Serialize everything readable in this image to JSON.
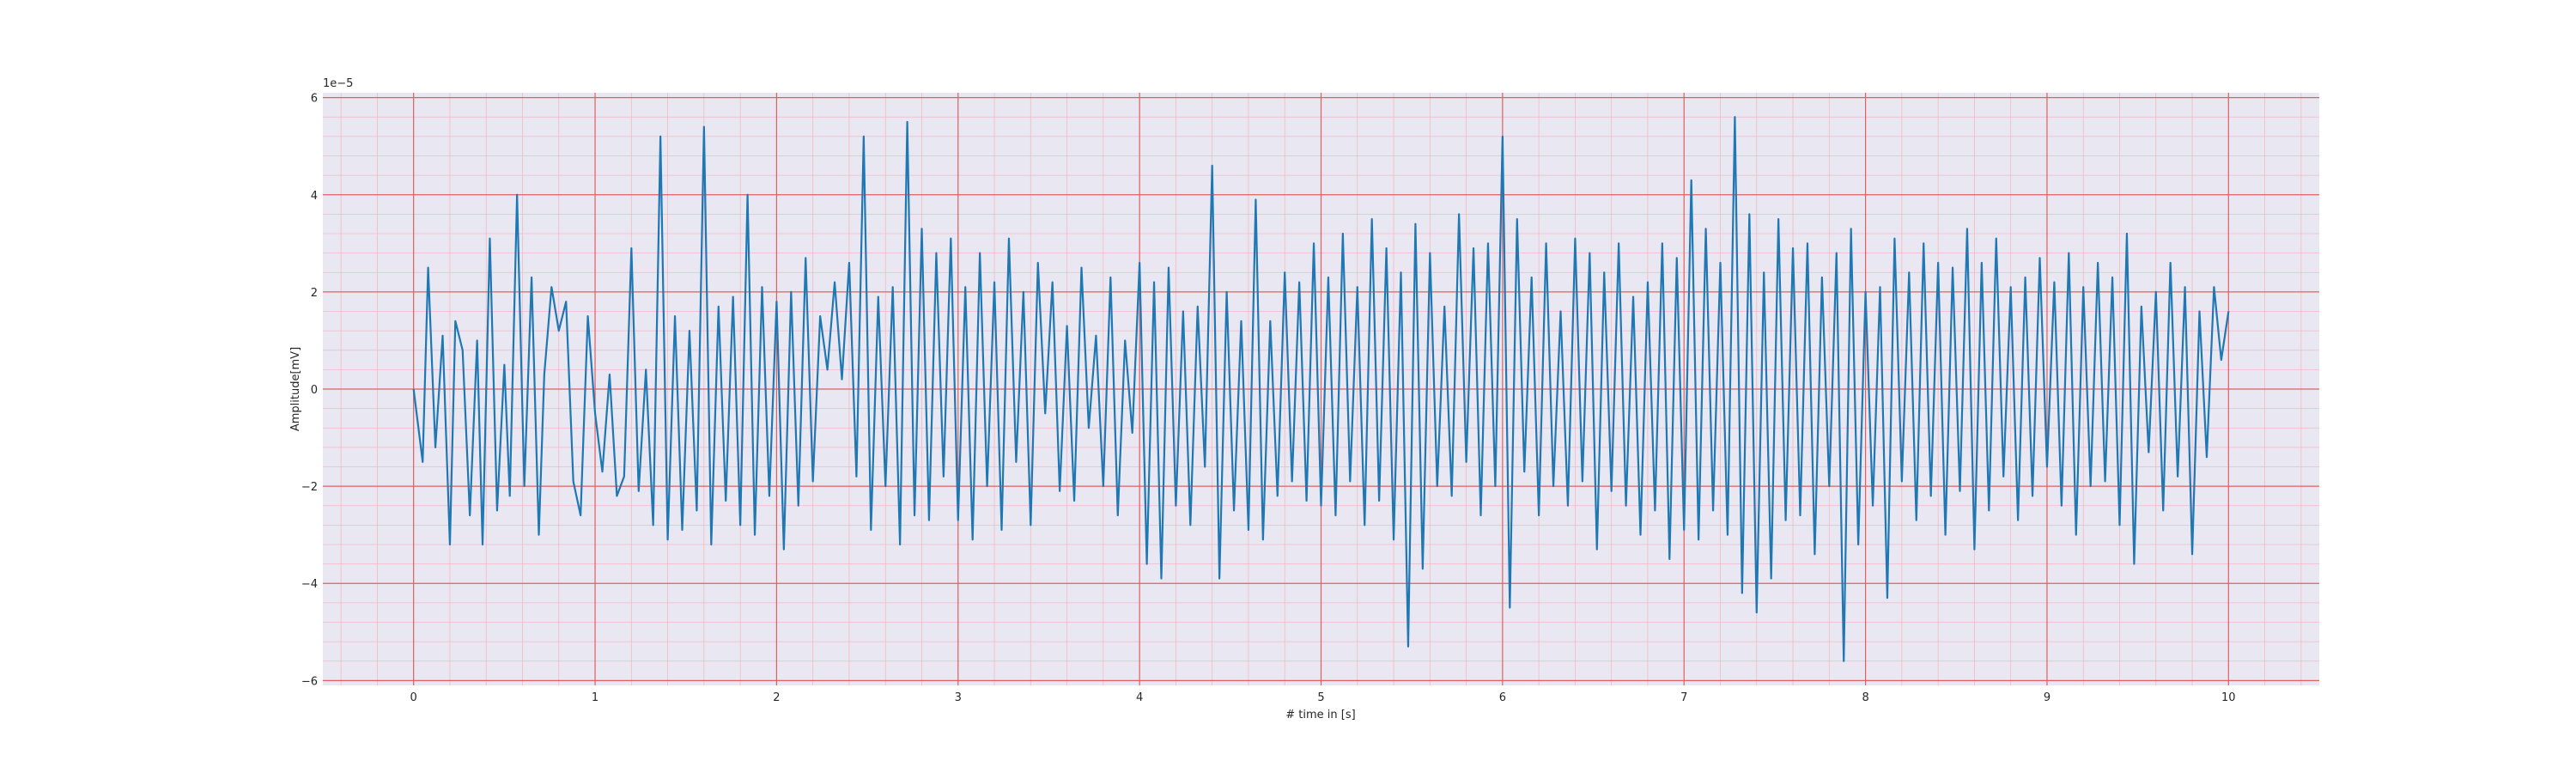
{
  "chart_data": {
    "type": "line",
    "title": "",
    "xlabel": "# time in [s]",
    "ylabel": "Amplitude[mV]",
    "y_offset_label": "1e−5",
    "xlim": [
      -0.5,
      10.5
    ],
    "ylim": [
      -6.1,
      6.1
    ],
    "x_ticks": [
      0,
      1,
      2,
      3,
      4,
      5,
      6,
      7,
      8,
      9,
      10
    ],
    "x_tick_labels": [
      "0",
      "1",
      "2",
      "3",
      "4",
      "5",
      "6",
      "7",
      "8",
      "9",
      "10"
    ],
    "y_ticks": [
      -6,
      -4,
      -2,
      0,
      2,
      4,
      6
    ],
    "y_tick_labels": [
      "−6",
      "−4",
      "−2",
      "0",
      "2",
      "4",
      "6"
    ],
    "grid": "on",
    "major_grid_color": "#e06060",
    "minor_grid_color": "#f2b8c6",
    "background_color": "#e9e8f2",
    "line_color": "#1f77b4",
    "series": [
      {
        "x": [
          0,
          0.05,
          0.08,
          0.12,
          0.16,
          0.2,
          0.23,
          0.27,
          0.31,
          0.35,
          0.38,
          0.42,
          0.46,
          0.5,
          0.53,
          0.57,
          0.61,
          0.65,
          0.69,
          0.72,
          0.76,
          0.8,
          0.84,
          0.88,
          0.92,
          0.96,
          1.0,
          1.04,
          1.08,
          1.12,
          1.16,
          1.2,
          1.24,
          1.28,
          1.32,
          1.36,
          1.4,
          1.44,
          1.48,
          1.52,
          1.56,
          1.6,
          1.64,
          1.68,
          1.72,
          1.76,
          1.8,
          1.84,
          1.88,
          1.92,
          1.96,
          2.0,
          2.04,
          2.08,
          2.12,
          2.16,
          2.2,
          2.24,
          2.28,
          2.32,
          2.36,
          2.4,
          2.44,
          2.48,
          2.52,
          2.56,
          2.6,
          2.64,
          2.68,
          2.72,
          2.76,
          2.8,
          2.84,
          2.88,
          2.92,
          2.96,
          3.0,
          3.04,
          3.08,
          3.12,
          3.16,
          3.2,
          3.24,
          3.28,
          3.32,
          3.36,
          3.4,
          3.44,
          3.48,
          3.52,
          3.56,
          3.6,
          3.64,
          3.68,
          3.72,
          3.76,
          3.8,
          3.84,
          3.88,
          3.92,
          3.96,
          4.0,
          4.04,
          4.08,
          4.12,
          4.16,
          4.2,
          4.24,
          4.28,
          4.32,
          4.36,
          4.4,
          4.44,
          4.48,
          4.52,
          4.56,
          4.6,
          4.64,
          4.68,
          4.72,
          4.76,
          4.8,
          4.84,
          4.88,
          4.92,
          4.96,
          5.0,
          5.04,
          5.08,
          5.12,
          5.16,
          5.2,
          5.24,
          5.28,
          5.32,
          5.36,
          5.4,
          5.44,
          5.48,
          5.52,
          5.56,
          5.6,
          5.64,
          5.68,
          5.72,
          5.76,
          5.8,
          5.84,
          5.88,
          5.92,
          5.96,
          6.0,
          6.04,
          6.08,
          6.12,
          6.16,
          6.2,
          6.24,
          6.28,
          6.32,
          6.36,
          6.4,
          6.44,
          6.48,
          6.52,
          6.56,
          6.6,
          6.64,
          6.68,
          6.72,
          6.76,
          6.8,
          6.84,
          6.88,
          6.92,
          6.96,
          7.0,
          7.04,
          7.08,
          7.12,
          7.16,
          7.2,
          7.24,
          7.28,
          7.32,
          7.36,
          7.4,
          7.44,
          7.48,
          7.52,
          7.56,
          7.6,
          7.64,
          7.68,
          7.72,
          7.76,
          7.8,
          7.84,
          7.88,
          7.92,
          7.96,
          8.0,
          8.04,
          8.08,
          8.12,
          8.16,
          8.2,
          8.24,
          8.28,
          8.32,
          8.36,
          8.4,
          8.44,
          8.48,
          8.52,
          8.56,
          8.6,
          8.64,
          8.68,
          8.72,
          8.76,
          8.8,
          8.84,
          8.88,
          8.92,
          8.96,
          9.0,
          9.04,
          9.08,
          9.12,
          9.16,
          9.2,
          9.24,
          9.28,
          9.32,
          9.36,
          9.4,
          9.44,
          9.48,
          9.52,
          9.56,
          9.6,
          9.64,
          9.68,
          9.72,
          9.76,
          9.8,
          9.84,
          9.88,
          9.92,
          9.96,
          10.0
        ],
        "values": [
          0.0,
          -1.5,
          2.5,
          -1.2,
          1.1,
          -3.2,
          1.4,
          0.8,
          -2.6,
          1.0,
          -3.2,
          3.1,
          -2.5,
          0.5,
          -2.2,
          4.0,
          -2.0,
          2.3,
          -3.0,
          0.3,
          2.1,
          1.2,
          1.8,
          -1.9,
          -2.6,
          1.5,
          -0.5,
          -1.7,
          0.3,
          -2.2,
          -1.8,
          2.9,
          -2.1,
          0.4,
          -2.8,
          5.2,
          -3.1,
          1.5,
          -2.9,
          1.2,
          -2.5,
          5.4,
          -3.2,
          1.7,
          -2.3,
          1.9,
          -2.8,
          4.0,
          -3.0,
          2.1,
          -2.2,
          1.8,
          -3.3,
          2.0,
          -2.4,
          2.7,
          -1.9,
          1.5,
          0.4,
          2.2,
          0.2,
          2.6,
          -1.8,
          5.2,
          -2.9,
          1.9,
          -2.0,
          2.1,
          -3.2,
          5.5,
          -2.6,
          3.3,
          -2.7,
          2.8,
          -1.8,
          3.1,
          -2.7,
          2.1,
          -3.1,
          2.8,
          -2.0,
          2.2,
          -2.9,
          3.1,
          -1.5,
          2.0,
          -2.8,
          2.6,
          -0.5,
          2.2,
          -2.1,
          1.3,
          -2.3,
          2.5,
          -0.8,
          1.1,
          -2.0,
          2.3,
          -2.6,
          1.0,
          -0.9,
          2.6,
          -3.6,
          2.2,
          -3.9,
          2.5,
          -2.4,
          1.6,
          -2.8,
          1.7,
          -1.6,
          4.6,
          -3.9,
          2.0,
          -2.5,
          1.4,
          -2.9,
          3.9,
          -3.1,
          1.4,
          -2.2,
          2.4,
          -1.9,
          2.2,
          -2.3,
          3.0,
          -2.4,
          2.3,
          -2.6,
          3.2,
          -1.9,
          2.1,
          -2.8,
          3.5,
          -2.3,
          2.9,
          -3.1,
          2.4,
          -5.3,
          3.4,
          -3.7,
          2.8,
          -2.0,
          1.7,
          -2.2,
          3.6,
          -1.5,
          2.9,
          -2.6,
          3.0,
          -2.0,
          5.2,
          -4.5,
          3.5,
          -1.7,
          2.3,
          -2.6,
          3.0,
          -2.0,
          1.6,
          -2.4,
          3.1,
          -1.9,
          2.8,
          -3.3,
          2.4,
          -2.1,
          3.0,
          -2.4,
          1.9,
          -3.0,
          2.2,
          -2.5,
          3.0,
          -3.5,
          2.7,
          -2.9,
          4.3,
          -3.1,
          3.3,
          -2.5,
          2.6,
          -3.0,
          5.6,
          -4.2,
          3.6,
          -4.6,
          2.4,
          -3.9,
          3.5,
          -2.7,
          2.9,
          -2.6,
          3.0,
          -3.4,
          2.3,
          -2.0,
          2.8,
          -5.6,
          3.3,
          -3.2,
          2.0,
          -2.4,
          2.1,
          -4.3,
          3.1,
          -1.9,
          2.4,
          -2.7,
          3.0,
          -2.2,
          2.6,
          -3.0,
          2.5,
          -2.1,
          3.3,
          -3.3,
          2.6,
          -2.5,
          3.1,
          -1.8,
          2.1,
          -2.7,
          2.3,
          -2.2,
          2.7,
          -1.6,
          2.2,
          -2.4,
          2.8,
          -3.0,
          2.1,
          -2.0,
          2.6,
          -1.9,
          2.3,
          -2.8,
          3.2,
          -3.6,
          1.7,
          -1.3,
          2.0,
          -2.5,
          2.6,
          -1.8,
          2.1,
          -3.4,
          1.6,
          -1.4,
          2.1,
          0.6,
          1.6
        ]
      }
    ]
  }
}
